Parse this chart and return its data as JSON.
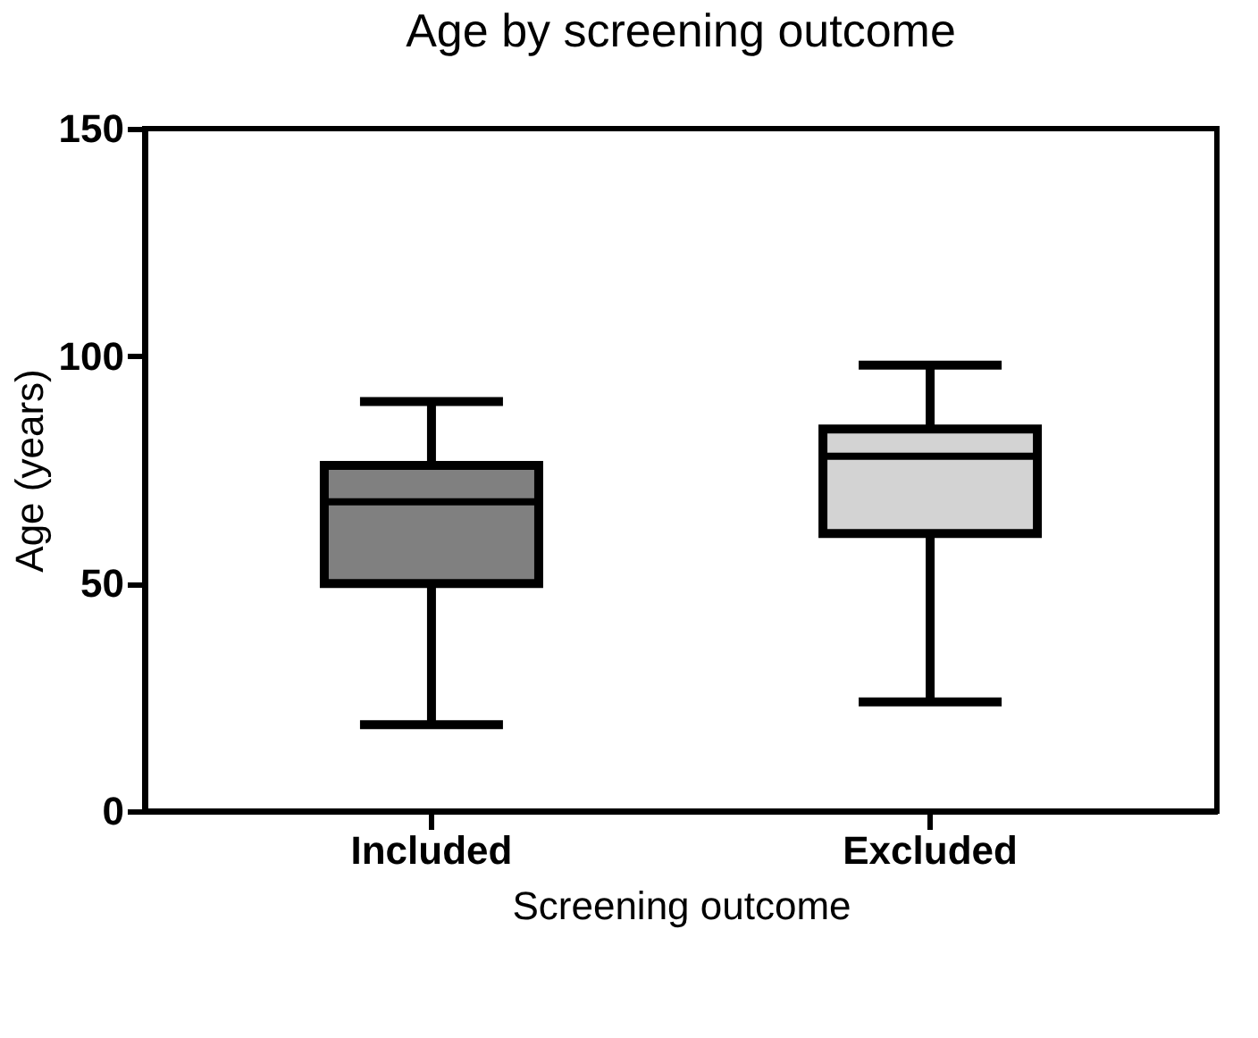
{
  "chart_data": {
    "type": "box",
    "title": "Age by screening outcome",
    "xlabel": "Screening outcome",
    "ylabel": "Age (years)",
    "categories": [
      "Included",
      "Excluded"
    ],
    "boxes": [
      {
        "low": 19,
        "q1": 50,
        "median": 68,
        "q3": 76,
        "high": 90
      },
      {
        "low": 24,
        "q1": 61,
        "median": 78,
        "q3": 84,
        "high": 98
      }
    ],
    "colors": [
      "#808080",
      "#d3d3d3"
    ],
    "ylim": [
      0,
      150
    ],
    "yticks": [
      0,
      50,
      100,
      150
    ],
    "grid": false
  }
}
